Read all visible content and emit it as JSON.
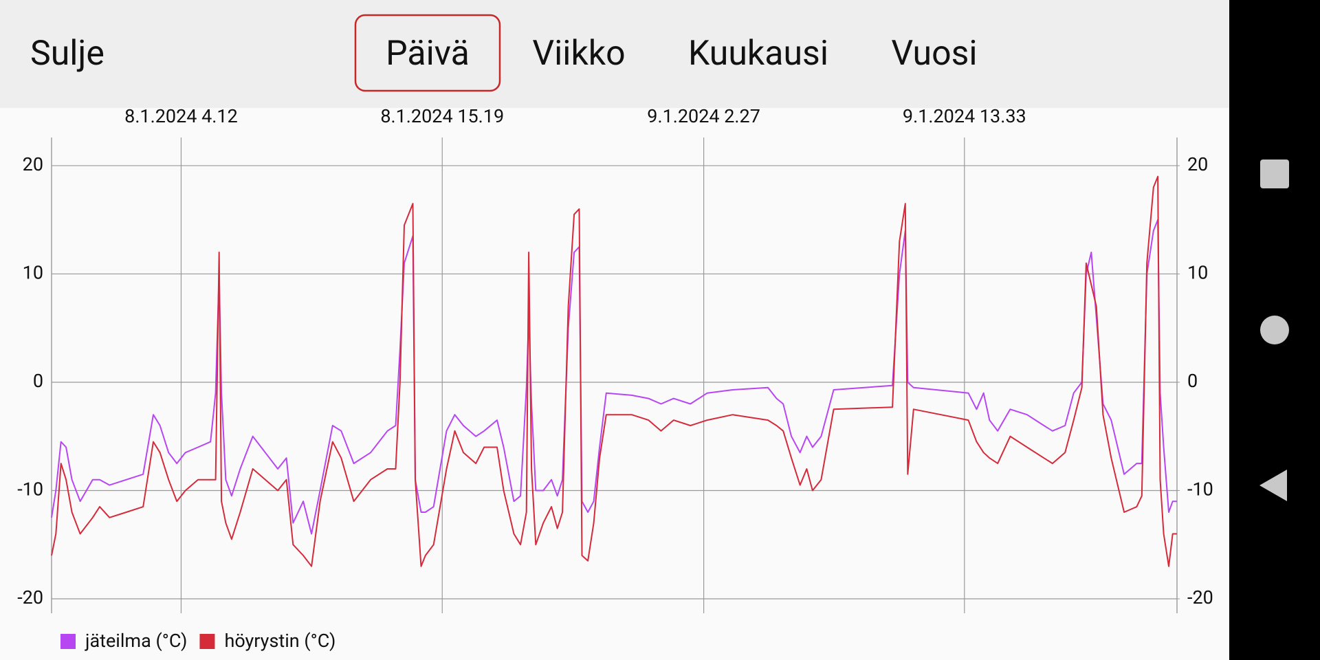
{
  "toolbar": {
    "close": "Sulje",
    "tabs": [
      "Päivä",
      "Viikko",
      "Kuukausi",
      "Vuosi"
    ],
    "selected": 0
  },
  "chart_data": {
    "type": "line",
    "x": [
      "2024-01-07T22:41",
      "2024-01-07T22:52",
      "2024-01-07T23:05",
      "2024-01-07T23:18",
      "2024-01-07T23:33",
      "2024-01-07T23:54",
      "2024-01-08T00:26",
      "2024-01-08T00:44",
      "2024-01-08T01:09",
      "2024-01-08T01:52",
      "2024-01-08T02:35",
      "2024-01-08T03:01",
      "2024-01-08T03:18",
      "2024-01-08T03:40",
      "2024-01-08T04:01",
      "2024-01-08T04:23",
      "2024-01-08T04:55",
      "2024-01-08T05:27",
      "2024-01-08T05:40",
      "2024-01-08T05:49",
      "2024-01-08T05:55",
      "2024-01-08T06:06",
      "2024-01-08T06:21",
      "2024-01-08T06:43",
      "2024-01-08T07:15",
      "2024-01-08T07:47",
      "2024-01-08T08:19",
      "2024-01-08T08:41",
      "2024-01-08T08:58",
      "2024-01-08T09:24",
      "2024-01-08T09:45",
      "2024-01-08T10:07",
      "2024-01-08T10:39",
      "2024-01-08T11:01",
      "2024-01-08T11:33",
      "2024-01-08T12:16",
      "2024-01-08T12:59",
      "2024-01-08T13:20",
      "2024-01-08T13:31",
      "2024-01-08T13:42",
      "2024-01-08T14:04",
      "2024-01-08T14:10",
      "2024-01-08T14:25",
      "2024-01-08T14:36",
      "2024-01-08T14:57",
      "2024-01-08T15:30",
      "2024-01-08T15:51",
      "2024-01-08T16:13",
      "2024-01-08T16:45",
      "2024-01-08T17:06",
      "2024-01-08T17:39",
      "2024-01-08T17:56",
      "2024-01-08T18:22",
      "2024-01-08T18:39",
      "2024-01-08T18:54",
      "2024-01-08T19:00",
      "2024-01-08T19:07",
      "2024-01-08T19:18",
      "2024-01-08T19:37",
      "2024-01-08T19:58",
      "2024-01-08T20:13",
      "2024-01-08T20:26",
      "2024-01-08T20:41",
      "2024-01-08T20:56",
      "2024-01-08T21:09",
      "2024-01-08T21:16",
      "2024-01-08T21:31",
      "2024-01-08T21:46",
      "2024-01-08T22:01",
      "2024-01-08T22:18",
      "2024-01-08T23:23",
      "2024-01-09T00:06",
      "2024-01-09T00:38",
      "2024-01-09T01:10",
      "2024-01-09T01:53",
      "2024-01-09T02:36",
      "2024-01-09T03:41",
      "2024-01-09T05:11",
      "2024-01-09T05:33",
      "2024-01-09T05:50",
      "2024-01-09T06:11",
      "2024-01-09T06:33",
      "2024-01-09T06:50",
      "2024-01-09T07:05",
      "2024-01-09T07:27",
      "2024-01-09T07:59",
      "2024-01-09T10:29",
      "2024-01-09T10:47",
      "2024-01-09T11:02",
      "2024-01-09T11:08",
      "2024-01-09T11:23",
      "2024-01-09T13:43",
      "2024-01-09T14:04",
      "2024-01-09T14:22",
      "2024-01-09T14:37",
      "2024-01-09T14:58",
      "2024-01-09T15:30",
      "2024-01-09T16:13",
      "2024-01-09T16:56",
      "2024-01-09T17:18",
      "2024-01-09T17:50",
      "2024-01-09T18:12",
      "2024-01-09T18:33",
      "2024-01-09T18:44",
      "2024-01-09T18:57",
      "2024-01-09T19:10",
      "2024-01-09T19:27",
      "2024-01-09T19:48",
      "2024-01-09T20:21",
      "2024-01-09T20:53",
      "2024-01-09T21:06",
      "2024-01-09T21:19",
      "2024-01-09T21:36",
      "2024-01-09T21:47",
      "2024-01-09T21:53",
      "2024-01-09T22:02",
      "2024-01-09T22:15",
      "2024-01-09T22:25",
      "2024-01-09T22:36"
    ],
    "series": [
      {
        "name": "jäteilma (°C)",
        "color": "#b845f2",
        "values": [
          -12.5,
          -10,
          -5.5,
          -6,
          -9,
          -11,
          -9,
          -9,
          -9.5,
          -9,
          -8.5,
          -3,
          -4,
          -6.5,
          -7.5,
          -6.5,
          -6,
          -5.5,
          -1,
          10,
          -1,
          -9,
          -10.5,
          -8,
          -5,
          -6.5,
          -8,
          -7,
          -13,
          -11,
          -14,
          -10,
          -4,
          -4.5,
          -7.5,
          -6.5,
          -4.5,
          -4,
          3,
          11,
          13.5,
          -9,
          -12,
          -12,
          -11.5,
          -4.5,
          -3,
          -4,
          -5,
          -4.5,
          -3.5,
          -6,
          -11,
          -10.5,
          -0.5,
          6,
          -2,
          -10,
          -10,
          -9,
          -10.5,
          -9,
          5,
          12,
          12.5,
          -11,
          -12,
          -11,
          -6,
          -1,
          -1.2,
          -1.5,
          -2,
          -1.5,
          -2,
          -1,
          -0.7,
          -0.5,
          -1.5,
          -2,
          -5,
          -6.5,
          -5,
          -6,
          -5,
          -0.7,
          -0.3,
          10,
          14,
          0,
          -0.5,
          -1,
          -2.5,
          -1,
          -3.5,
          -4.5,
          -2.5,
          -3,
          -4,
          -4.5,
          -4,
          -1,
          0,
          10,
          12,
          6,
          -2,
          -3.5,
          -8.5,
          -7.5,
          -7.5,
          10,
          14,
          15,
          -1,
          -6,
          -12,
          -11,
          -11
        ]
      },
      {
        "name": "höyrystin (°C)",
        "color": "#d42a3a",
        "values": [
          -16,
          -14,
          -7.5,
          -9,
          -12,
          -14,
          -12.5,
          -11.5,
          -12.5,
          -12,
          -11.5,
          -5.5,
          -6.5,
          -9,
          -11,
          -10,
          -9,
          -9,
          -9,
          12,
          -11,
          -13,
          -14.5,
          -12,
          -8,
          -9,
          -10,
          -9,
          -15,
          -16,
          -17,
          -11,
          -5.5,
          -7,
          -11,
          -9,
          -8,
          -8,
          0,
          14.5,
          16.5,
          -9,
          -17,
          -16,
          -15,
          -8,
          -4.5,
          -6.5,
          -7.5,
          -6,
          -6,
          -10,
          -14,
          -15,
          -12,
          12,
          -8,
          -15,
          -13,
          -11.5,
          -13.5,
          -12,
          7,
          15.5,
          16,
          -16,
          -16.5,
          -13,
          -7,
          -3,
          -3,
          -3.5,
          -4.5,
          -3.5,
          -4,
          -3.5,
          -3,
          -3.5,
          -4,
          -4.5,
          -7,
          -9.5,
          -8,
          -10,
          -9,
          -2.5,
          -2.3,
          13,
          16.5,
          -8.5,
          -2.5,
          -3.5,
          -5.5,
          -6.5,
          -7,
          -7.5,
          -5,
          -6,
          -7,
          -7.5,
          -6.5,
          -3.5,
          -0.5,
          11,
          9,
          7,
          -3,
          -7,
          -12,
          -11.5,
          -10.5,
          11,
          18,
          19,
          -9,
          -14,
          -17,
          -14,
          -14
        ]
      }
    ],
    "xlim": [
      "2024-01-07T22:41",
      "2024-01-09T22:36"
    ],
    "xticks": [
      {
        "value": "2024-01-08T04:12",
        "label": "8.1.2024 4.12"
      },
      {
        "value": "2024-01-08T15:19",
        "label": "8.1.2024 15.19"
      },
      {
        "value": "2024-01-09T02:27",
        "label": "9.1.2024 2.27"
      },
      {
        "value": "2024-01-09T13:33",
        "label": "9.1.2024 13.33"
      }
    ],
    "ylim": [
      -20.7,
      22.6
    ],
    "yticks": [
      -20,
      -10,
      0,
      10,
      20
    ],
    "y2lim": [
      -20.7,
      22.6
    ],
    "y2ticks": [
      -20,
      -10,
      0,
      10,
      20
    ],
    "grid": true
  }
}
